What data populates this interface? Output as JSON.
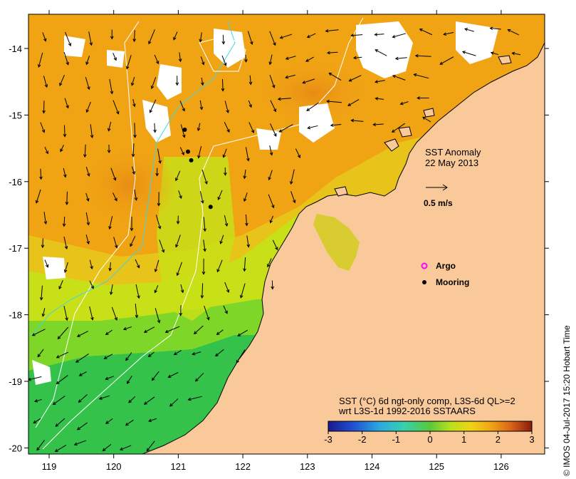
{
  "map": {
    "title": "SST Anomaly",
    "date": "22 May 2013",
    "scale_vector_label": "0.5 m/s",
    "legend": {
      "argo_label": "Argo",
      "mooring_label": "Mooring"
    },
    "product_line1": "SST (°C) 6d ngt-only comp, L3S-6d QL>=2",
    "product_line2": "wrt L3S-1d 1992-2016 SSTAARS",
    "credit": "© IMOS 04-Jul-2017 15:20 Hobart Time",
    "colorbar": {
      "ticks": [
        "-3",
        "-2",
        "-1",
        "0",
        "1",
        "2",
        "3"
      ],
      "min": -3,
      "max": 3
    },
    "x_ticks": [
      "119",
      "120",
      "121",
      "122",
      "123",
      "124",
      "125",
      "126"
    ],
    "y_ticks": [
      "-14",
      "-15",
      "-16",
      "-17",
      "-18",
      "-19",
      "-20"
    ],
    "colors": {
      "land": "#f9c99a",
      "ocean_anomaly_low": "#34c24a",
      "ocean_anomaly_mid": "#c8e018",
      "ocean_anomaly_high": "#f0a414",
      "mooring": "#000000",
      "argo": "#ff00ff"
    },
    "moorings_lonlat": [
      [
        121.1,
        -15.22
      ],
      [
        121.15,
        -15.55
      ],
      [
        121.2,
        -15.68
      ],
      [
        121.5,
        -16.38
      ]
    ]
  }
}
